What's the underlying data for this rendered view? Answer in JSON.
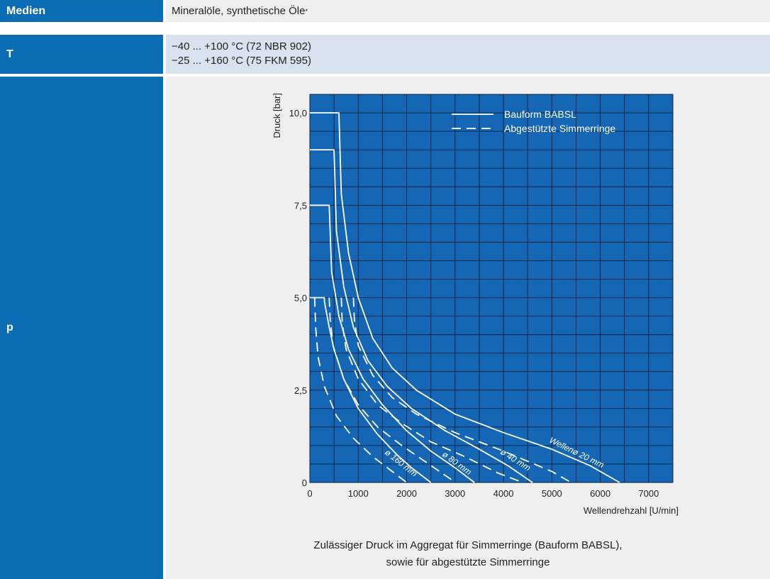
{
  "rows": {
    "medien": {
      "label": "Medien",
      "value": "Mineralöle, synthetische Öle",
      "footnote_mark": "*"
    },
    "t": {
      "label": "T",
      "lines": [
        "−40 ... +100 °C (72 NBR 902)",
        "−25 ... +160 °C (75 FKM 595)"
      ]
    },
    "p": {
      "label": "p",
      "caption_lines": [
        "Zulässiger Druck im Aggregat für Simmerringe (Bauform BABSL),",
        "sowie für abgestützte Simmerringe"
      ]
    }
  },
  "colors": {
    "label_bg": "#0a6cb3",
    "plot_bg": "#1567b5",
    "grid": "#0a1f3a",
    "curve": "#ffffff",
    "row_gray": "#efefef",
    "row_blue": "#d9e3f0"
  },
  "chart_data": {
    "type": "line",
    "xlabel": "Wellendrehzahl [U/min]",
    "ylabel": "Druck [bar]",
    "xlim": [
      0,
      7500
    ],
    "ylim": [
      0,
      10.5
    ],
    "x_ticks": [
      0,
      1000,
      2000,
      3000,
      4000,
      5000,
      6000,
      7000
    ],
    "y_ticks": [
      0,
      2.5,
      5,
      7.5,
      10
    ],
    "y_tick_labels": [
      "0",
      "2,5",
      "5,0",
      "7,5",
      "10,0"
    ],
    "grid": true,
    "legend": {
      "placement": "top-right",
      "entries": [
        {
          "label": "Bauform BABSL",
          "style": "solid"
        },
        {
          "label": "Abgestützte Simmerringe",
          "style": "dashed"
        }
      ]
    },
    "series": [
      {
        "name": "Wellenø 20 mm",
        "style": "solid",
        "x": [
          0,
          600,
          650,
          800,
          1000,
          1300,
          1700,
          2200,
          3000,
          4000,
          5000,
          5800,
          6400
        ],
        "y": [
          10,
          10,
          7.8,
          6.2,
          5.0,
          3.9,
          3.1,
          2.5,
          1.85,
          1.35,
          0.9,
          0.45,
          0.0
        ]
      },
      {
        "name": "ø 40 mm",
        "style": "solid",
        "x": [
          0,
          500,
          550,
          700,
          900,
          1200,
          1600,
          2100,
          2800,
          3500,
          4100,
          4600
        ],
        "y": [
          9,
          9,
          6.8,
          5.3,
          4.2,
          3.3,
          2.6,
          2.0,
          1.4,
          0.9,
          0.45,
          0.0
        ]
      },
      {
        "name": "ø 80 mm",
        "style": "solid",
        "x": [
          0,
          400,
          450,
          600,
          800,
          1100,
          1500,
          2000,
          2500,
          3000,
          3400
        ],
        "y": [
          7.5,
          7.5,
          5.7,
          4.5,
          3.6,
          2.8,
          2.1,
          1.4,
          0.85,
          0.4,
          0.0
        ]
      },
      {
        "name": "ø 160 mm",
        "style": "solid",
        "x": [
          0,
          300,
          300,
          400,
          500,
          700,
          1000,
          1400,
          1800,
          2100,
          2500
        ],
        "y": [
          5,
          5,
          4.9,
          4.2,
          3.6,
          2.8,
          2.0,
          1.3,
          0.75,
          0.4,
          0.0
        ]
      },
      {
        "name": "ø 20 mm abgestützt",
        "style": "dashed",
        "x": [
          900,
          920,
          1000,
          1300,
          1700,
          2200,
          3000,
          4000,
          5000,
          5400
        ],
        "y": [
          5,
          4.4,
          3.7,
          2.9,
          2.3,
          1.85,
          1.35,
          0.85,
          0.3,
          0.0
        ]
      },
      {
        "name": "ø 40 mm abgestützt",
        "style": "dashed",
        "x": [
          650,
          670,
          750,
          1000,
          1400,
          1900,
          2500,
          3200,
          3900,
          4400
        ],
        "y": [
          5,
          4.3,
          3.6,
          2.8,
          2.1,
          1.6,
          1.1,
          0.7,
          0.25,
          0.0
        ]
      },
      {
        "name": "ø 80 mm abgestützt",
        "style": "dashed",
        "x": [
          400,
          420,
          480,
          700,
          1000,
          1400,
          1900,
          2400,
          2900,
          3000
        ],
        "y": [
          5,
          4.4,
          3.7,
          2.8,
          2.1,
          1.5,
          1.0,
          0.55,
          0.1,
          0.0
        ]
      },
      {
        "name": "ø 160 mm abgestützt",
        "style": "dashed",
        "x": [
          100,
          120,
          170,
          300,
          550,
          900,
          1300,
          1700,
          1950,
          2000
        ],
        "y": [
          5,
          4.2,
          3.4,
          2.6,
          1.8,
          1.2,
          0.7,
          0.3,
          0.05,
          0.0
        ]
      }
    ],
    "annotations": [
      "Wellenø 20 mm",
      "ø 40 mm",
      "ø 80 mm",
      "ø 160 mm"
    ]
  }
}
